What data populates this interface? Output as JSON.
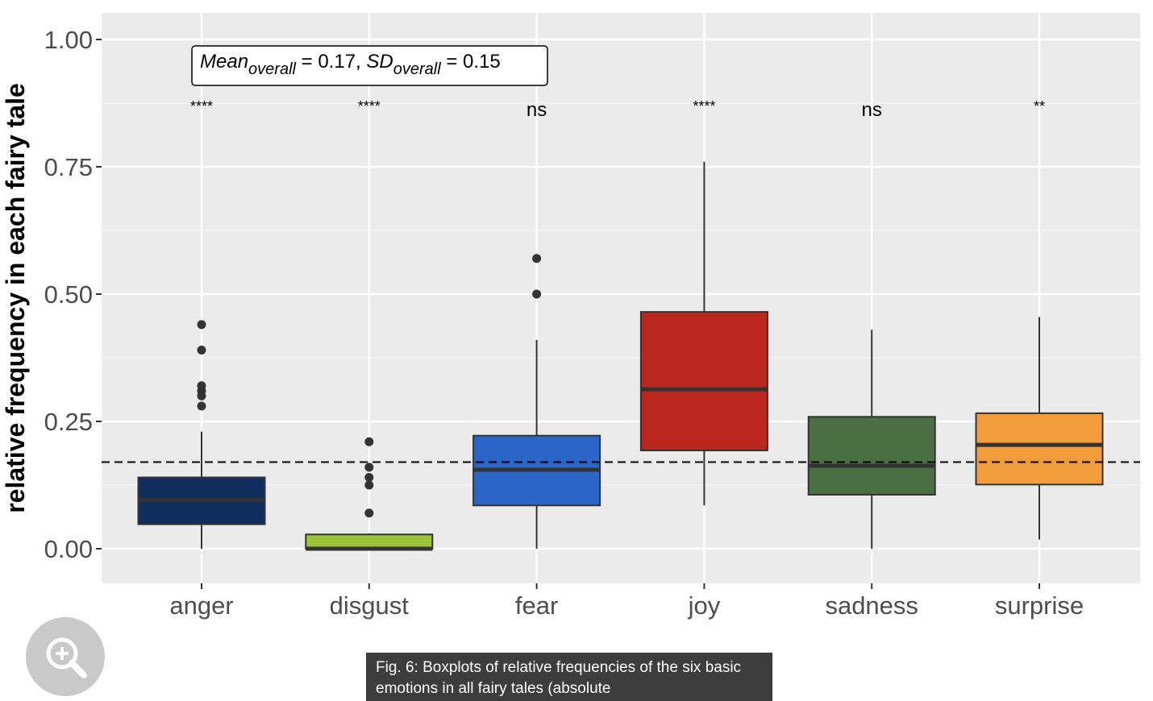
{
  "chart_data": {
    "type": "boxplot",
    "ylabel": "relative frequency in each fairy tale",
    "ylim": [
      -0.07,
      1.05
    ],
    "yticks": [
      0.0,
      0.25,
      0.5,
      0.75,
      1.0
    ],
    "ytick_labels": [
      "0.00",
      "0.25",
      "0.50",
      "0.75",
      "1.00"
    ],
    "grid": true,
    "reference_line": 0.17,
    "annotation": {
      "mean_label": "Mean",
      "sd_label": "SD",
      "subscript": "overall",
      "mean_value": "0.17",
      "sd_value": "0.15"
    },
    "categories": [
      "anger",
      "disgust",
      "fear",
      "joy",
      "sadness",
      "surprise"
    ],
    "colors": [
      "#0f2d5e",
      "#9dc33a",
      "#2a66c8",
      "#b9271e",
      "#4a6f42",
      "#f39c3a"
    ],
    "significance": [
      "****",
      "****",
      "ns",
      "****",
      "ns",
      "**"
    ],
    "boxes": [
      {
        "q1": 0.048,
        "median": 0.096,
        "q3": 0.14,
        "whisker_low": 0.0,
        "whisker_high": 0.23,
        "outliers": [
          0.44,
          0.39,
          0.32,
          0.31,
          0.3,
          0.28
        ]
      },
      {
        "q1": 0.0,
        "median": 0.0,
        "q3": 0.028,
        "whisker_low": 0.0,
        "whisker_high": 0.03,
        "outliers": [
          0.21,
          0.16,
          0.14,
          0.125,
          0.07
        ]
      },
      {
        "q1": 0.085,
        "median": 0.155,
        "q3": 0.222,
        "whisker_low": 0.0,
        "whisker_high": 0.41,
        "outliers": [
          0.57,
          0.5
        ]
      },
      {
        "q1": 0.193,
        "median": 0.313,
        "q3": 0.465,
        "whisker_low": 0.085,
        "whisker_high": 0.76,
        "outliers": []
      },
      {
        "q1": 0.106,
        "median": 0.163,
        "q3": 0.259,
        "whisker_low": 0.0,
        "whisker_high": 0.43,
        "outliers": []
      },
      {
        "q1": 0.126,
        "median": 0.204,
        "q3": 0.266,
        "whisker_low": 0.018,
        "whisker_high": 0.455,
        "outliers": []
      }
    ]
  },
  "ui": {
    "zoom_icon": "zoom-in-icon",
    "caption_text": "Fig. 6: Boxplots of relative frequencies of the six basic emotions in all fairy tales (absolute"
  }
}
